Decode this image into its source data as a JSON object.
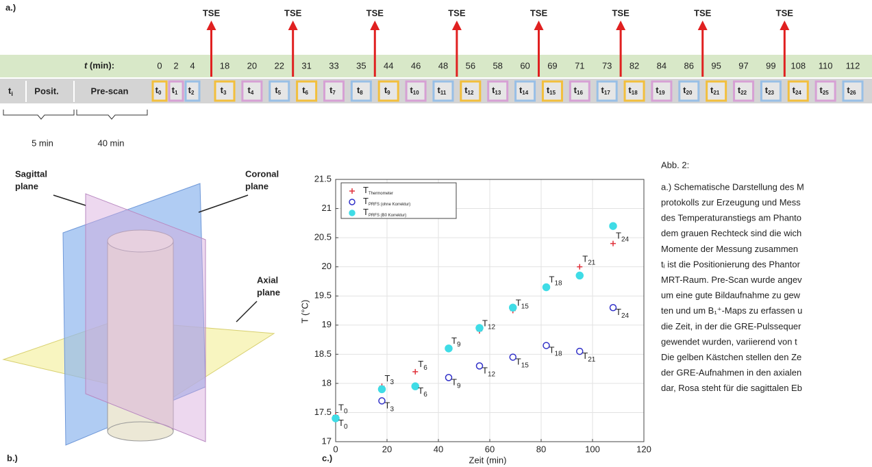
{
  "timeline": {
    "label": "a.)",
    "event": "TSE",
    "time_var": "t",
    "time_unit": "(min):",
    "times": [
      0,
      2,
      4,
      18,
      20,
      22,
      31,
      33,
      35,
      44,
      46,
      48,
      56,
      58,
      60,
      69,
      71,
      73,
      82,
      84,
      86,
      95,
      97,
      99,
      108,
      110,
      112
    ],
    "start_var": "t",
    "start_sub": "i",
    "positioning": "Posit.",
    "prescan": "Pre-scan",
    "box_var": "t",
    "box_indices": [
      0,
      1,
      2,
      3,
      4,
      5,
      6,
      7,
      8,
      9,
      10,
      11,
      12,
      13,
      14,
      15,
      16,
      17,
      18,
      19,
      20,
      21,
      22,
      23,
      24,
      25,
      26
    ],
    "box_colors": [
      "#f2bf3c",
      "#d6a0d4",
      "#98bfe6"
    ],
    "durations": [
      "5 min",
      "40 min"
    ]
  },
  "diagram": {
    "label": "b.)",
    "sagittal": [
      "Sagittal",
      "plane"
    ],
    "coronal": [
      "Coronal",
      "plane"
    ],
    "axial": [
      "Axial",
      "plane"
    ]
  },
  "chart_data": {
    "type": "scatter",
    "label": "c.)",
    "x_label": "Zeit (min)",
    "y_label": "T (°C)",
    "xlim": [
      0,
      120
    ],
    "xticks": [
      0,
      20,
      40,
      60,
      80,
      100,
      120
    ],
    "ylim": [
      17,
      21.5
    ],
    "yticks": [
      17,
      17.5,
      18,
      18.5,
      19,
      19.5,
      20,
      20.5,
      21,
      21.5
    ],
    "grid": true,
    "x": [
      0,
      18,
      31,
      44,
      56,
      69,
      82,
      95,
      108
    ],
    "legend_prefix": "T",
    "point_prefix": "T",
    "point_labels": [
      "0",
      "3",
      "6",
      "9",
      "12",
      "15",
      "18",
      "21",
      "24"
    ],
    "series": [
      {
        "name": "Thermometer",
        "color": "#e0303a",
        "marker": "plus",
        "values": [
          17.45,
          17.95,
          18.2,
          18.6,
          18.9,
          19.25,
          19.65,
          20.0,
          20.4
        ]
      },
      {
        "name": "PRFS (ohne Korrektur)",
        "color": "#3030c8",
        "marker": "open-circle",
        "values": [
          17.4,
          17.7,
          17.95,
          18.1,
          18.3,
          18.45,
          18.65,
          18.55,
          19.3
        ]
      },
      {
        "name": "PRFS (B0 Korrektur)",
        "color": "#3fdce6",
        "marker": "filled-circle",
        "values": [
          17.4,
          17.9,
          17.95,
          18.6,
          18.95,
          19.3,
          19.65,
          19.85,
          20.7
        ]
      }
    ]
  },
  "caption": {
    "title": "Abb. 2:",
    "lines": [
      "a.) Schematische Darstellung des M",
      "protokolls zur Erzeugung und Mess",
      "des Temperaturanstiegs am Phanto",
      "dem grauen Rechteck sind die wich",
      "Momente der Messung zusammen",
      "tᵢ ist die Positionierung des Phantor",
      "MRT-Raum. Pre-Scan wurde angev",
      "um eine gute Bildaufnahme zu gew",
      "ten und um B₁⁺-Maps zu erfassen u",
      "die Zeit, in der die GRE-Pulssequer",
      "gewendet wurden, variierend von t",
      "Die gelben Kästchen stellen den Ze",
      "der GRE-Aufnahmen in den axialen",
      "dar, Rosa steht für die sagittalen Eb"
    ]
  }
}
